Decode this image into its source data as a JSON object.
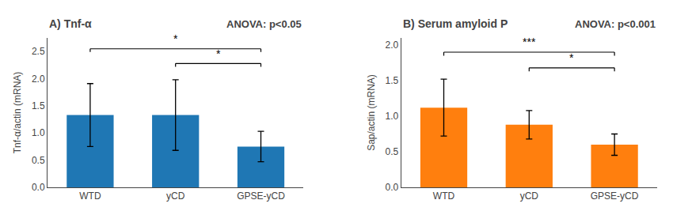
{
  "chart_data": [
    {
      "type": "bar",
      "title": "A) Tnf-α",
      "annotations": [
        "ANOVA: p<0.05"
      ],
      "y_label": "Tnf-α/actin (mRNA)",
      "categories": [
        "WTD",
        "yCD",
        "GPSE-yCD"
      ],
      "values": [
        1.33,
        1.33,
        0.75
      ],
      "errors": [
        0.58,
        0.65,
        0.28
      ],
      "ylim": [
        0,
        2.75
      ],
      "yticks": [
        {
          "value": 0,
          "label": "0.0"
        },
        0.5,
        {
          "value": 1,
          "label": "1.0"
        },
        1.5,
        {
          "value": 2,
          "label": "2.0"
        },
        2.5
      ],
      "grid": false,
      "significance": [
        {
          "from": "WTD",
          "to": "GPSE-yCD",
          "y": 2.55,
          "tick_down": 0.06,
          "label": "*",
          "label_offset": 0.04
        },
        {
          "from": "yCD",
          "to": "GPSE-yCD",
          "y": 2.28,
          "tick_down": 0.06,
          "label": "*",
          "label_offset": 0.04
        }
      ]
    },
    {
      "type": "bar",
      "title": "B) Serum amyloid P",
      "annotations": [
        "ANOVA: p<0.001"
      ],
      "y_label": "Sap/actin (mRNA)",
      "categories": [
        "WTD",
        "yCD",
        "GPSE-yCD"
      ],
      "values": [
        1.12,
        0.88,
        0.6
      ],
      "errors": [
        0.4,
        0.2,
        0.15
      ],
      "ylim": [
        0,
        2.1
      ],
      "yticks": [
        {
          "value": 0,
          "label": "0.0"
        },
        0.5,
        {
          "value": 1,
          "label": "1.0"
        },
        1.5,
        {
          "value": 2,
          "label": "2.0"
        }
      ],
      "grid": false,
      "significance": [
        {
          "from": "WTD",
          "to": "GPSE-yCD",
          "y": 1.9,
          "tick_down": 0.05,
          "label": "***",
          "label_offset": 0.03
        },
        {
          "from": "yCD",
          "to": "GPSE-yCD",
          "y": 1.68,
          "tick_down": 0.05,
          "label": "*",
          "label_offset": 0.03
        }
      ]
    }
  ]
}
